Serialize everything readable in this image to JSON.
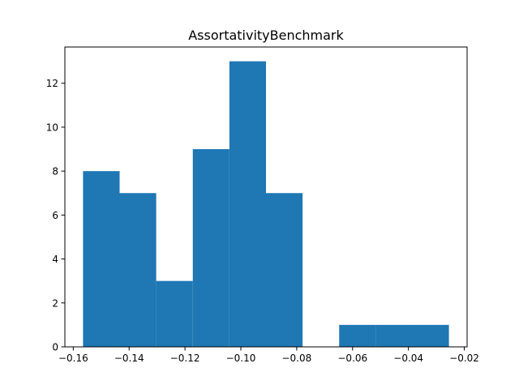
{
  "chart_data": {
    "type": "bar",
    "title": "AssortativityBenchmark",
    "xlabel": "",
    "ylabel": "",
    "bin_edges": [
      -0.1565,
      -0.1434,
      -0.1303,
      -0.1172,
      -0.1041,
      -0.091,
      -0.0779,
      -0.0648,
      -0.0517,
      -0.0386,
      -0.0255
    ],
    "counts": [
      8,
      7,
      3,
      9,
      13,
      7,
      0,
      1,
      1,
      1
    ],
    "xlim": [
      -0.163,
      -0.019
    ],
    "ylim": [
      0,
      13.65
    ],
    "x_ticks": [
      -0.16,
      -0.14,
      -0.12,
      -0.1,
      -0.08,
      -0.06,
      -0.04,
      -0.02
    ],
    "x_tick_labels": [
      "−0.16",
      "−0.14",
      "−0.12",
      "−0.10",
      "−0.08",
      "−0.06",
      "−0.04",
      "−0.02"
    ],
    "y_ticks": [
      0,
      2,
      4,
      6,
      8,
      10,
      12
    ],
    "y_tick_labels": [
      "0",
      "2",
      "4",
      "6",
      "8",
      "10",
      "12"
    ],
    "bar_color": "#1f77b4",
    "grid": false,
    "legend": "none"
  }
}
